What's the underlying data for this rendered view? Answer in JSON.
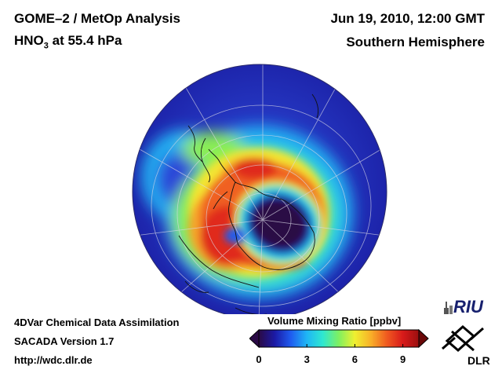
{
  "header": {
    "title_line1": "GOME–2 / MetOp Analysis",
    "title_line2_prefix": "HNO",
    "title_line2_sub": "3",
    "title_line2_suffix": " at 55.4 hPa",
    "datetime": "Jun 19, 2010, 12:00 GMT",
    "region": "Southern Hemisphere"
  },
  "colorbar": {
    "title": "Volume Mixing Ratio [ppbv]",
    "tick_labels": [
      "0",
      "3",
      "6",
      "9"
    ],
    "tick_values": [
      0,
      3,
      6,
      9
    ],
    "range": [
      0,
      10
    ],
    "colors": [
      "#2a0a45",
      "#1b1aa6",
      "#1f5cf0",
      "#1fb6f5",
      "#2fe8d0",
      "#7ff060",
      "#f0f030",
      "#f8b028",
      "#f05a20",
      "#d81a1a",
      "#9a0f0f"
    ]
  },
  "footer": {
    "line1": "4DVar Chemical Data Assimilation",
    "line2": "SACADA Version 1.7",
    "line3": "http://wdc.dlr.de"
  },
  "logos": {
    "riu": "RIU",
    "dlr": "DLR"
  },
  "map": {
    "projection": "orthographic",
    "hemisphere": "south",
    "field": "HNO3 mixing ratio",
    "colors": {
      "background_field": "#2233bb",
      "vortex_core": "#2a0a45",
      "collar_peak": "#d81a1a"
    }
  }
}
